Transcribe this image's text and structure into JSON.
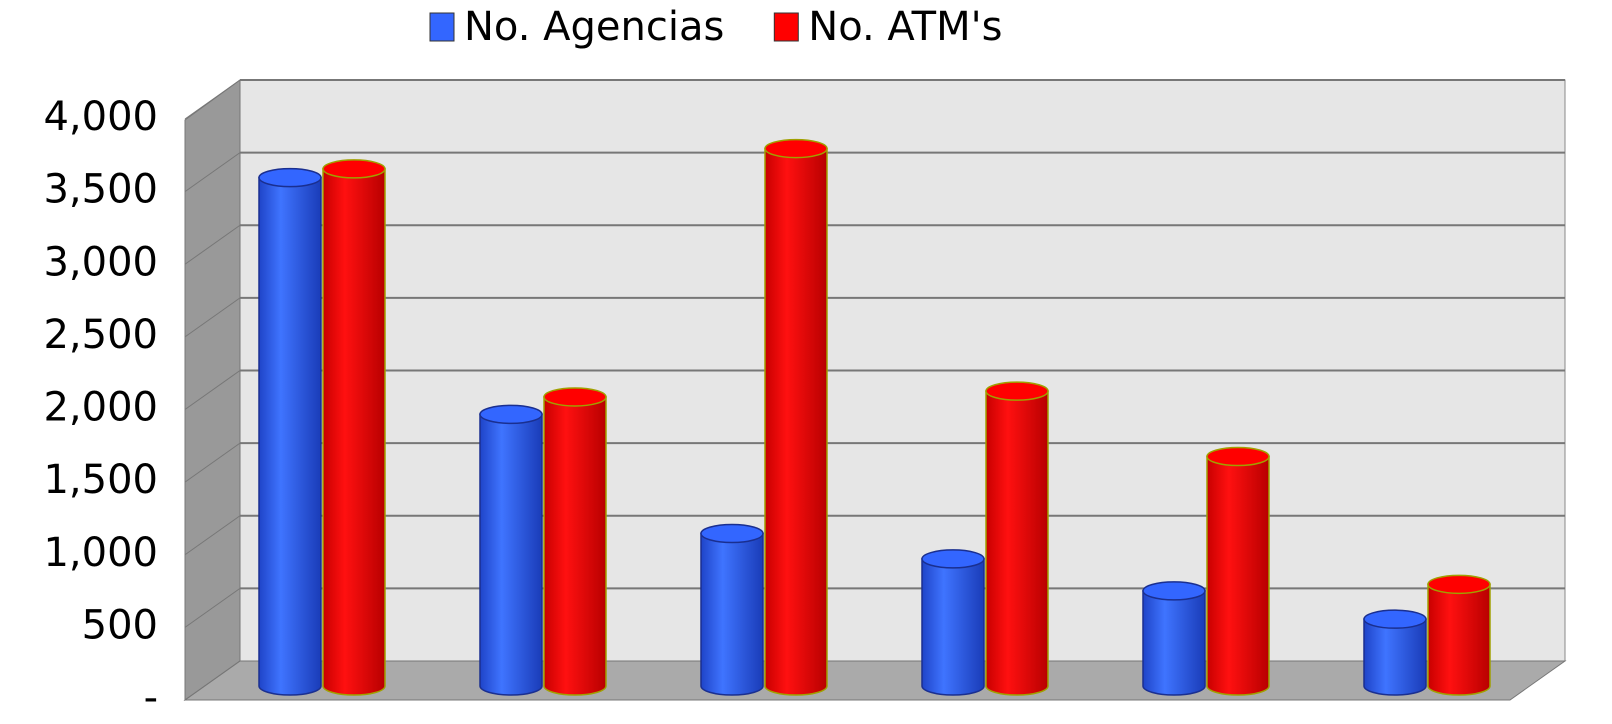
{
  "chart_data": {
    "type": "bar",
    "categories": [
      null,
      null,
      null,
      null,
      null,
      null
    ],
    "series": [
      {
        "name": "No. Agencias",
        "color": "#3366ff",
        "values": [
          3500,
          1870,
          1050,
          875,
          655,
          460
        ]
      },
      {
        "name": "No. ATM's",
        "color": "#ff0000",
        "values": [
          3560,
          1990,
          3700,
          2030,
          1580,
          700
        ]
      }
    ],
    "ylim": [
      0,
      4000
    ],
    "yticks": [
      {
        "value": 0,
        "label": "-"
      },
      {
        "value": 500,
        "label": "500"
      },
      {
        "value": 1000,
        "label": "1,000"
      },
      {
        "value": 1500,
        "label": "1,500"
      },
      {
        "value": 2000,
        "label": "2,000"
      },
      {
        "value": 2500,
        "label": "2,500"
      },
      {
        "value": 3000,
        "label": "3,000"
      },
      {
        "value": 3500,
        "label": "3,500"
      },
      {
        "value": 4000,
        "label": "4,000"
      }
    ],
    "grid": true,
    "legend": "top"
  }
}
